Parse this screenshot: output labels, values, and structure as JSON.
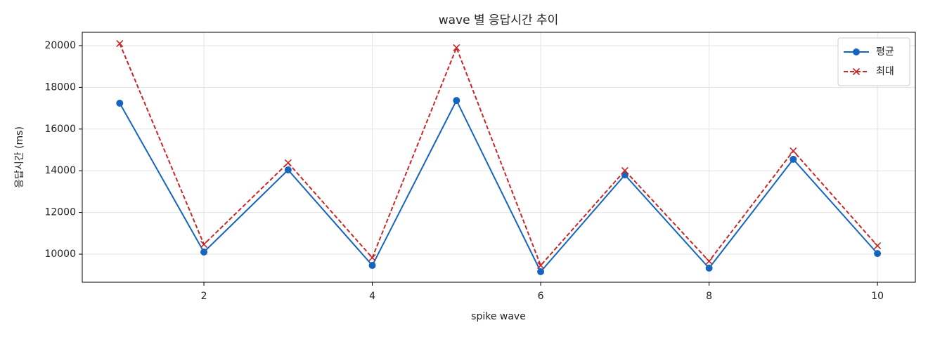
{
  "chart_data": {
    "type": "line",
    "title": "wave 별 응답시간 추이",
    "x_label": "spike wave",
    "y_label": "응답시간 (ms)",
    "x": [
      1,
      2,
      3,
      4,
      5,
      6,
      7,
      8,
      9,
      10
    ],
    "series": [
      {
        "name": "평균",
        "color": "#1565c0",
        "marker": "o",
        "linestyle": "solid",
        "values": [
          17240,
          10100,
          14040,
          9460,
          17370,
          9160,
          13800,
          9330,
          14550,
          10030
        ]
      },
      {
        "name": "최대",
        "color": "#c62828",
        "marker": "x",
        "linestyle": "dashed",
        "values": [
          20100,
          10470,
          14380,
          9830,
          19900,
          9460,
          14010,
          9660,
          14950,
          10400
        ]
      }
    ],
    "xlim": [
      0.555,
      10.45
    ],
    "xticks": [
      2,
      4,
      6,
      8,
      10
    ],
    "ylim": [
      8653,
      20640
    ],
    "yticks": [
      10000,
      12000,
      14000,
      16000,
      18000,
      20000
    ],
    "grid": true,
    "legend": "upper right"
  }
}
